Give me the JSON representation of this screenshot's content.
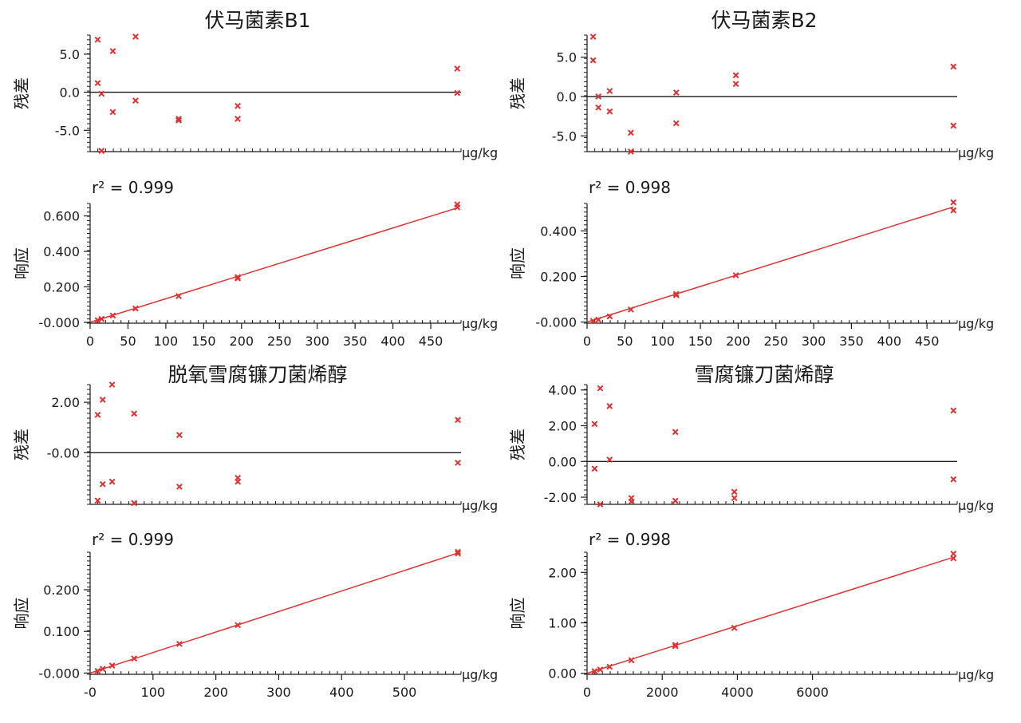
{
  "colors": {
    "points": "#e03030",
    "line": "#e03030",
    "axis": "#1a1a1a"
  },
  "chart_data": [
    {
      "compound": "伏马菌素B1",
      "residual": {
        "type": "scatter",
        "title": "伏马菌素B1",
        "ylabel": "残差",
        "xunit": "μg/kg",
        "ylim": [
          -7.8,
          7.5
        ],
        "yticks": [
          5.0,
          0.0,
          -5.0
        ],
        "ytick_labels": [
          "5.0",
          "0.0",
          "-5.0"
        ],
        "zero_line": true,
        "points": [
          {
            "x": 10,
            "y": 6.9
          },
          {
            "x": 10,
            "y": 1.2
          },
          {
            "x": 15,
            "y": -0.2
          },
          {
            "x": 15,
            "y": -7.7
          },
          {
            "x": 30,
            "y": 5.4
          },
          {
            "x": 30,
            "y": -2.6
          },
          {
            "x": 60,
            "y": 7.3
          },
          {
            "x": 60,
            "y": -1.1
          },
          {
            "x": 117,
            "y": -3.5
          },
          {
            "x": 117,
            "y": -3.7
          },
          {
            "x": 195,
            "y": -1.8
          },
          {
            "x": 195,
            "y": -3.5
          },
          {
            "x": 485,
            "y": 3.1
          },
          {
            "x": 485,
            "y": -0.1
          }
        ]
      },
      "calibration": {
        "type": "scatter",
        "ylabel": "响应",
        "xunit": "μg/kg",
        "r2_label": "r² = 0.999",
        "xlim": [
          0,
          490
        ],
        "ylim": [
          -0.005,
          0.67
        ],
        "xticks": [
          0,
          50,
          100,
          150,
          200,
          250,
          300,
          350,
          400,
          450
        ],
        "xtick_labels": [
          "0",
          "50",
          "100",
          "150",
          "200",
          "250",
          "300",
          "350",
          "400",
          "450"
        ],
        "yticks": [
          0.0,
          0.2,
          0.4,
          0.6
        ],
        "ytick_labels": [
          "-0.000",
          "0.200",
          "0.400",
          "0.600"
        ],
        "fit": {
          "x": [
            0,
            485
          ],
          "y": [
            0.0,
            0.645
          ]
        },
        "points": [
          {
            "x": 10,
            "y": 0.012
          },
          {
            "x": 15,
            "y": 0.019
          },
          {
            "x": 30,
            "y": 0.038
          },
          {
            "x": 60,
            "y": 0.078
          },
          {
            "x": 117,
            "y": 0.148
          },
          {
            "x": 195,
            "y": 0.248
          },
          {
            "x": 195,
            "y": 0.255
          },
          {
            "x": 485,
            "y": 0.648
          },
          {
            "x": 485,
            "y": 0.665
          }
        ]
      }
    },
    {
      "compound": "伏马菌素B2",
      "residual": {
        "type": "scatter",
        "title": "伏马菌素B2",
        "ylabel": "残差",
        "xunit": "μg/kg",
        "ylim": [
          -7.0,
          7.8
        ],
        "yticks": [
          5.0,
          0.0,
          -5.0
        ],
        "ytick_labels": [
          "5.0",
          "0.0",
          "-5.0"
        ],
        "zero_line": true,
        "points": [
          {
            "x": 8,
            "y": 7.6
          },
          {
            "x": 8,
            "y": 4.6
          },
          {
            "x": 15,
            "y": 0.0
          },
          {
            "x": 15,
            "y": -1.4
          },
          {
            "x": 30,
            "y": 0.7
          },
          {
            "x": 30,
            "y": -1.9
          },
          {
            "x": 58,
            "y": -4.6
          },
          {
            "x": 58,
            "y": -7.0
          },
          {
            "x": 118,
            "y": 0.5
          },
          {
            "x": 118,
            "y": -3.4
          },
          {
            "x": 197,
            "y": 2.7
          },
          {
            "x": 197,
            "y": 1.6
          },
          {
            "x": 485,
            "y": 3.8
          },
          {
            "x": 485,
            "y": -3.7
          }
        ]
      },
      "calibration": {
        "type": "scatter",
        "ylabel": "响应",
        "xunit": "μg/kg",
        "r2_label": "r² = 0.998",
        "xlim": [
          0,
          490
        ],
        "ylim": [
          -0.005,
          0.52
        ],
        "xticks": [
          0,
          50,
          100,
          150,
          200,
          250,
          300,
          350,
          400,
          450
        ],
        "xtick_labels": [
          "0",
          "50",
          "100",
          "150",
          "200",
          "250",
          "300",
          "350",
          "400",
          "450"
        ],
        "yticks": [
          0.0,
          0.2,
          0.4
        ],
        "ytick_labels": [
          "-0.000",
          "0.200",
          "0.400"
        ],
        "fit": {
          "x": [
            0,
            485
          ],
          "y": [
            0.0,
            0.505
          ]
        },
        "points": [
          {
            "x": 8,
            "y": 0.005
          },
          {
            "x": 15,
            "y": 0.01
          },
          {
            "x": 30,
            "y": 0.025
          },
          {
            "x": 58,
            "y": 0.055
          },
          {
            "x": 118,
            "y": 0.118
          },
          {
            "x": 118,
            "y": 0.123
          },
          {
            "x": 197,
            "y": 0.205
          },
          {
            "x": 485,
            "y": 0.49
          },
          {
            "x": 485,
            "y": 0.525
          }
        ]
      }
    },
    {
      "compound": "脱氧雪腐镰刀菌烯醇",
      "residual": {
        "type": "scatter",
        "title": "脱氧雪腐镰刀菌烯醇",
        "ylabel": "残差",
        "xunit": "μg/kg",
        "ylim": [
          -2.05,
          2.7
        ],
        "yticks": [
          2.0,
          0.0
        ],
        "ytick_labels": [
          "2.00",
          "-0.00"
        ],
        "zero_line": true,
        "points": [
          {
            "x": 12,
            "y": 1.5
          },
          {
            "x": 12,
            "y": -1.9
          },
          {
            "x": 20,
            "y": 2.1
          },
          {
            "x": 20,
            "y": -1.25
          },
          {
            "x": 35,
            "y": 2.7
          },
          {
            "x": 35,
            "y": -1.15
          },
          {
            "x": 70,
            "y": 1.55
          },
          {
            "x": 70,
            "y": -2.0
          },
          {
            "x": 142,
            "y": 0.7
          },
          {
            "x": 142,
            "y": -1.35
          },
          {
            "x": 235,
            "y": -1.0
          },
          {
            "x": 235,
            "y": -1.15
          },
          {
            "x": 585,
            "y": 1.3
          },
          {
            "x": 585,
            "y": -0.4
          }
        ]
      },
      "calibration": {
        "type": "scatter",
        "ylabel": "响应",
        "xunit": "μg/kg",
        "r2_label": "r² = 0.999",
        "xlim": [
          0,
          590
        ],
        "ylim": [
          -0.003,
          0.29
        ],
        "xticks": [
          0,
          100,
          200,
          300,
          400,
          500
        ],
        "xtick_labels": [
          "-0",
          "100",
          "200",
          "300",
          "400",
          "500"
        ],
        "yticks": [
          0.0,
          0.1,
          0.2
        ],
        "ytick_labels": [
          "-0.000",
          "0.100",
          "0.200"
        ],
        "fit": {
          "x": [
            0,
            585
          ],
          "y": [
            0.0,
            0.288
          ]
        },
        "points": [
          {
            "x": 12,
            "y": 0.005
          },
          {
            "x": 20,
            "y": 0.01
          },
          {
            "x": 35,
            "y": 0.018
          },
          {
            "x": 70,
            "y": 0.035
          },
          {
            "x": 142,
            "y": 0.07
          },
          {
            "x": 235,
            "y": 0.115
          },
          {
            "x": 585,
            "y": 0.287
          },
          {
            "x": 585,
            "y": 0.291
          }
        ]
      }
    },
    {
      "compound": "雪腐镰刀菌烯醇",
      "residual": {
        "type": "scatter",
        "title": "雪腐镰刀菌烯醇",
        "ylabel": "残差",
        "xunit": "μg/kg",
        "ylim": [
          -2.4,
          4.3
        ],
        "yticks": [
          4.0,
          2.0,
          0.0,
          -2.0
        ],
        "ytick_labels": [
          "4.00",
          "2.00",
          "0.00",
          "-2.00"
        ],
        "zero_line": true,
        "points": [
          {
            "x": 200,
            "y": 2.1
          },
          {
            "x": 200,
            "y": -0.4
          },
          {
            "x": 350,
            "y": 4.1
          },
          {
            "x": 350,
            "y": -2.4
          },
          {
            "x": 600,
            "y": 3.1
          },
          {
            "x": 600,
            "y": 0.1
          },
          {
            "x": 1180,
            "y": -2.05
          },
          {
            "x": 1180,
            "y": -2.25
          },
          {
            "x": 2350,
            "y": 1.65
          },
          {
            "x": 2350,
            "y": -2.2
          },
          {
            "x": 3920,
            "y": -1.7
          },
          {
            "x": 3920,
            "y": -2.05
          },
          {
            "x": 9750,
            "y": 2.85
          },
          {
            "x": 9750,
            "y": -1.0
          }
        ]
      },
      "calibration": {
        "type": "scatter",
        "ylabel": "响应",
        "xunit": "μg/kg",
        "r2_label": "r² = 0.998",
        "xlim": [
          0,
          9850
        ],
        "ylim": [
          -0.02,
          2.4
        ],
        "xticks": [
          0,
          2000,
          4000,
          6000
        ],
        "xtick_labels": [
          "0",
          "2000",
          "4000",
          "6000"
        ],
        "yticks": [
          0.0,
          1.0,
          2.0
        ],
        "ytick_labels": [
          "0.00",
          "1.00",
          "2.00"
        ],
        "fit": {
          "x": [
            0,
            9750
          ],
          "y": [
            0.0,
            2.3
          ]
        },
        "points": [
          {
            "x": 200,
            "y": 0.04
          },
          {
            "x": 350,
            "y": 0.075
          },
          {
            "x": 600,
            "y": 0.13
          },
          {
            "x": 1180,
            "y": 0.26
          },
          {
            "x": 2350,
            "y": 0.54
          },
          {
            "x": 2350,
            "y": 0.56
          },
          {
            "x": 3920,
            "y": 0.9
          },
          {
            "x": 9750,
            "y": 2.28
          },
          {
            "x": 9750,
            "y": 2.37
          }
        ]
      }
    }
  ]
}
